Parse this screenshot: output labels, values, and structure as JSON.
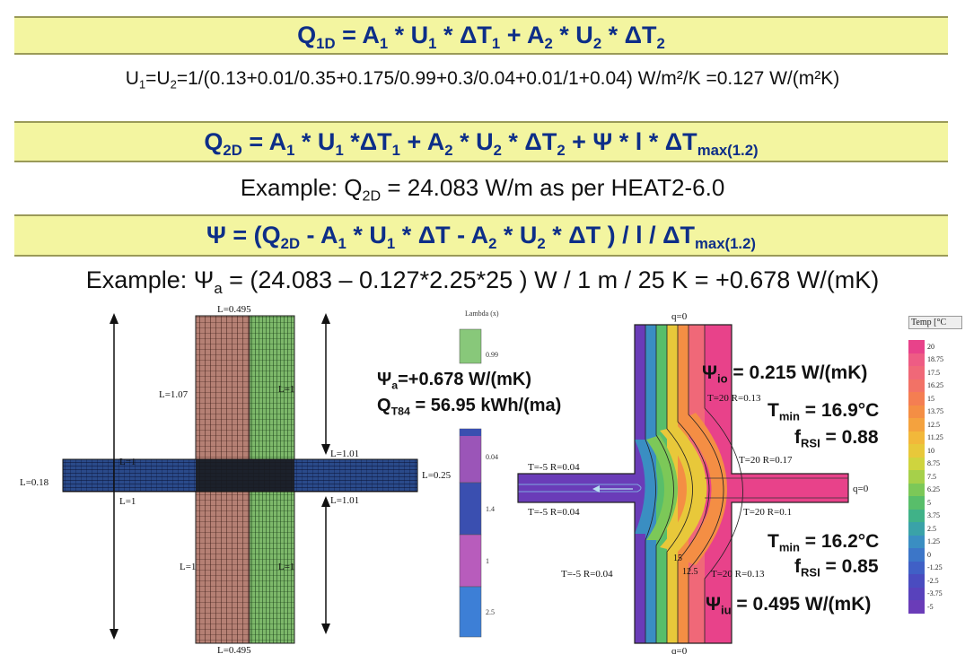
{
  "formulas": {
    "q1d": {
      "lhs": "Q",
      "lhs_sub": "1D",
      "p1": "= A",
      "s1": "1",
      "p2": " * U",
      "s2": "1",
      "p3": " * ΔT",
      "s3": "1",
      "p4": "  +  A",
      "s4": "2",
      "p5": " * U",
      "s5": "2",
      "p6": " * ΔT",
      "s6": "2"
    },
    "u_line": {
      "a": "U",
      "s1": "1",
      "b": "=U",
      "s2": "2",
      "c": "=1/(0.13+0.01/0.35+0.175/0.99+0.3/0.04+0.01/1+0.04) W/m²/K =0.127 W/(m²K)"
    },
    "q2d": {
      "lhs": "Q",
      "lhs_sub": "2D",
      "p1": " =  A",
      "s1": "1",
      "p2": " * U",
      "s2": "1",
      "p3": " *ΔT",
      "s3": "1",
      "p4": "  +  A",
      "s4": "2",
      "p5": " * U",
      "s5": "2",
      "p6": " * ΔT",
      "s6": "2",
      "p7": "  +  Ψ * l * ΔT",
      "s7": "max(1.2)"
    },
    "example1": {
      "a": "Example: Q",
      "sub": "2D",
      "b": " = 24.083 W/m as per HEAT2-6.0"
    },
    "psi": {
      "a": "Ψ = (Q",
      "s1": "2D",
      "b": " - A",
      "s2": "1",
      "c": " * U",
      "s3": "1",
      "d": " * ΔT - A",
      "s4": "2",
      "e": " * U",
      "s5": "2",
      "f": " * ΔT )  /  l  /  ΔT",
      "s6": "max(1.2)"
    },
    "example2": {
      "a": "Example: Ψ",
      "sub": "a",
      "b": " = (24.083 – 0.127*2.25*25 ) W / 1 m / 25 K = +0.678 W/(mK)"
    }
  },
  "mesh_labels": {
    "top": "L=0.495",
    "bottom": "L=0.495",
    "left_upper": "L=1.07",
    "right_upper": "L=1",
    "h_upper_left": "L=1",
    "h_lower_left": "L=1",
    "h_upper_right": "L=1.01",
    "h_lower_right": "L=1.01",
    "left_end": "L=0.18",
    "right_end": "L=0.25",
    "left_lower": "L=1",
    "right_lower": "L=1"
  },
  "lambda_legend": {
    "title": "Lambda (x)",
    "values": [
      "0.99",
      "0.04",
      "1.4",
      "1",
      "2.5"
    ],
    "colors": [
      "#88c87a",
      "#9b55b8",
      "#3a4fb0",
      "#b85cbc",
      "#3d7fd6"
    ]
  },
  "results_left": {
    "psi_a": "Ψ",
    "psi_a_sub": "a",
    "psi_a_val": "=+0.678 W/(mK)",
    "q_t84": "Q",
    "q_t84_sub": "T84",
    "q_t84_val": " = 56.95 kWh/(ma)"
  },
  "thermal_labels": {
    "q_top": "q=0",
    "q_bottom": "q=0",
    "q_right": "q=0",
    "bc_upper_left": "T=-5 R=0.04",
    "bc_lower_left": "T=-5 R=0.04",
    "bc_bottom_left": "T=-5 R=0.04",
    "bc_top_inner": "T=20 R=0.13",
    "bc_right_upper": "T=20 R=0.17",
    "bc_right_lower": "T=20 R=0.1",
    "bc_bottom_inner": "T=20 R=0.13",
    "iso_a": "15",
    "iso_b": "12.5"
  },
  "results_right": {
    "psi_io": "Ψ",
    "psi_io_sub": "io",
    "psi_io_val": " = 0.215 W/(mK)",
    "tmin1": "T",
    "tmin1_sub": "min",
    "tmin1_val": " = 16.9°C",
    "frsi1": "f",
    "frsi1_sub": "RSI",
    "frsi1_val": " = 0.88",
    "tmin2": "T",
    "tmin2_sub": "min",
    "tmin2_val": " = 16.2°C",
    "frsi2": "f",
    "frsi2_sub": "RSI",
    "frsi2_val": " = 0.85",
    "psi_iu": "Ψ",
    "psi_iu_sub": "iu",
    "psi_iu_val": " = 0.495 W/(mK)"
  },
  "temp_legend": {
    "title": "Temp [°C",
    "values": [
      "20",
      "18.75",
      "17.5",
      "16.25",
      "15",
      "13.75",
      "12.5",
      "11.25",
      "10",
      "8.75",
      "7.5",
      "6.25",
      "5",
      "3.75",
      "2.5",
      "1.25",
      "0",
      "-1.25",
      "-2.5",
      "-3.75",
      "-5"
    ],
    "colors": [
      "#e8428a",
      "#ee5c84",
      "#f06878",
      "#f27266",
      "#f47e52",
      "#f48e44",
      "#f4a23e",
      "#f2b83a",
      "#e8c83a",
      "#cfd43e",
      "#a6d04a",
      "#7cc858",
      "#58be6a",
      "#40b288",
      "#3aa2a8",
      "#3a8ec2",
      "#3c76c8",
      "#4060c6",
      "#4a4cc0",
      "#5842bc",
      "#6a3cb8"
    ]
  }
}
